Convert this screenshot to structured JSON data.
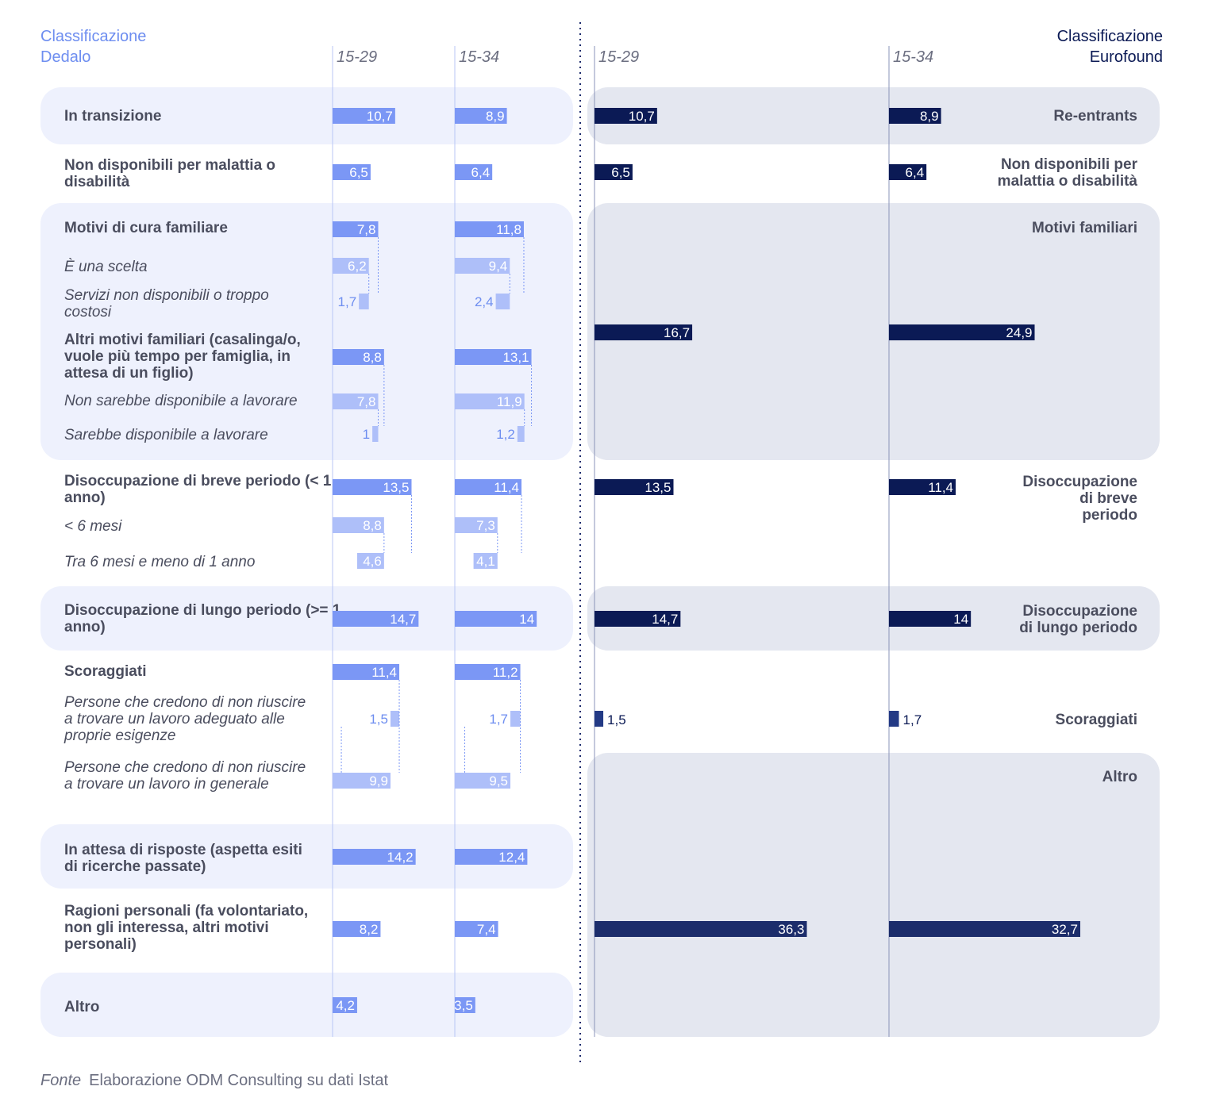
{
  "chart_data": {
    "type": "bar",
    "left_title": [
      "Classificazione",
      "Dedalo"
    ],
    "right_title": [
      "Classificazione",
      "Eurofound"
    ],
    "age_groups": [
      "15-29",
      "15-34"
    ],
    "colors": {
      "dedalo_main": "#7b97f5",
      "dedalo_sub": "#aebff9",
      "dedalo_label_light": "#6e8ef0",
      "eurofound": "#0b1a55",
      "eurofound_scoraggiati": "#233a85",
      "band_left": "#eef1fd",
      "band_right": "#e4e7f0",
      "text": "#4a4d5e",
      "right_title": "#0b1a55",
      "left_title": "#6e8ef0"
    },
    "dedalo": [
      {
        "label": "In transizione",
        "style": "main",
        "v1529": 10.7,
        "v1534": 8.9,
        "l1529": "10,7",
        "l1534": "8,9"
      },
      {
        "label": "Non disponibili per malattia o disabilità",
        "style": "main",
        "v1529": 6.5,
        "v1534": 6.4,
        "l1529": "6,5",
        "l1534": "6,4"
      },
      {
        "label": "Motivi di cura familiare",
        "style": "main",
        "v1529": 7.8,
        "v1534": 11.8,
        "l1529": "7,8",
        "l1534": "11,8"
      },
      {
        "label": "È una scelta",
        "style": "sub",
        "v1529": 6.2,
        "v1534": 9.4,
        "l1529": "6,2",
        "l1534": "9,4"
      },
      {
        "label": "Servizi non disponibili o troppo costosi",
        "style": "sub",
        "v1529": 1.7,
        "v1534": 2.4,
        "l1529": "1,7",
        "l1534": "2,4"
      },
      {
        "label": "Altri motivi familiari (casalinga/o, vuole più tempo per famiglia, in attesa di un figlio)",
        "style": "main",
        "v1529": 8.8,
        "v1534": 13.1,
        "l1529": "8,8",
        "l1534": "13,1"
      },
      {
        "label": "Non sarebbe disponibile a lavorare",
        "style": "sub",
        "v1529": 7.8,
        "v1534": 11.9,
        "l1529": "7,8",
        "l1534": "11,9"
      },
      {
        "label": "Sarebbe disponibile a lavorare",
        "style": "sub",
        "v1529": 1,
        "v1534": 1.2,
        "l1529": "1",
        "l1534": "1,2"
      },
      {
        "label": "Disoccupazione di breve periodo (< 1 anno)",
        "style": "main",
        "v1529": 13.5,
        "v1534": 11.4,
        "l1529": "13,5",
        "l1534": "11,4"
      },
      {
        "label": "< 6 mesi",
        "style": "sub",
        "v1529": 8.8,
        "v1534": 7.3,
        "l1529": "8,8",
        "l1534": "7,3"
      },
      {
        "label": "Tra 6 mesi e meno di 1 anno",
        "style": "sub",
        "v1529": 4.6,
        "v1534": 4.1,
        "l1529": "4,6",
        "l1534": "4,1"
      },
      {
        "label": "Disoccupazione di lungo periodo (>= 1 anno)",
        "style": "main",
        "v1529": 14.7,
        "v1534": 14,
        "l1529": "14,7",
        "l1534": "14"
      },
      {
        "label": "Scoraggiati",
        "style": "main",
        "v1529": 11.4,
        "v1534": 11.2,
        "l1529": "11,4",
        "l1534": "11,2"
      },
      {
        "label": "Persone che credono di non riuscire a trovare un lavoro adeguato alle proprie esigenze",
        "style": "sub",
        "v1529": 1.5,
        "v1534": 1.7,
        "l1529": "1,5",
        "l1534": "1,7"
      },
      {
        "label": "Persone che credono di non riuscire a trovare un lavoro in generale",
        "style": "sub",
        "v1529": 9.9,
        "v1534": 9.5,
        "l1529": "9,9",
        "l1534": "9,5"
      },
      {
        "label": "In attesa di risposte (aspetta esiti di ricerche passate)",
        "style": "main",
        "v1529": 14.2,
        "v1534": 12.4,
        "l1529": "14,2",
        "l1534": "12,4"
      },
      {
        "label": "Ragioni personali (fa volontariato, non gli interessa, altri motivi personali)",
        "style": "main",
        "v1529": 8.2,
        "v1534": 7.4,
        "l1529": "8,2",
        "l1534": "7,4"
      },
      {
        "label": "Altro",
        "style": "main",
        "v1529": 4.2,
        "v1534": 3.5,
        "l1529": "4,2",
        "l1534": "3,5"
      }
    ],
    "eurofound": [
      {
        "label": "Re-entrants",
        "v1529": 10.7,
        "v1534": 8.9,
        "l1529": "10,7",
        "l1534": "8,9"
      },
      {
        "label": "Non disponibili per malattia o disabilità",
        "v1529": 6.5,
        "v1534": 6.4,
        "l1529": "6,5",
        "l1534": "6,4"
      },
      {
        "label": "Motivi familiari",
        "v1529": 16.7,
        "v1534": 24.9,
        "l1529": "16,7",
        "l1534": "24,9"
      },
      {
        "label": "Disoccupazione di breve periodo",
        "v1529": 13.5,
        "v1534": 11.4,
        "l1529": "13,5",
        "l1534": "11,4"
      },
      {
        "label": "Disoccupazione di lungo periodo",
        "v1529": 14.7,
        "v1534": 14,
        "l1529": "14,7",
        "l1534": "14"
      },
      {
        "label": "Scoraggiati",
        "v1529": 1.5,
        "v1534": 1.7,
        "l1529": "1,5",
        "l1534": "1,7"
      },
      {
        "label": "Altro",
        "v1529": 36.3,
        "v1534": 32.7,
        "l1529": "36,3",
        "l1534": "32,7"
      }
    ]
  },
  "footer": {
    "lead": "Fonte",
    "text": "Elaborazione ODM Consulting su dati Istat"
  }
}
